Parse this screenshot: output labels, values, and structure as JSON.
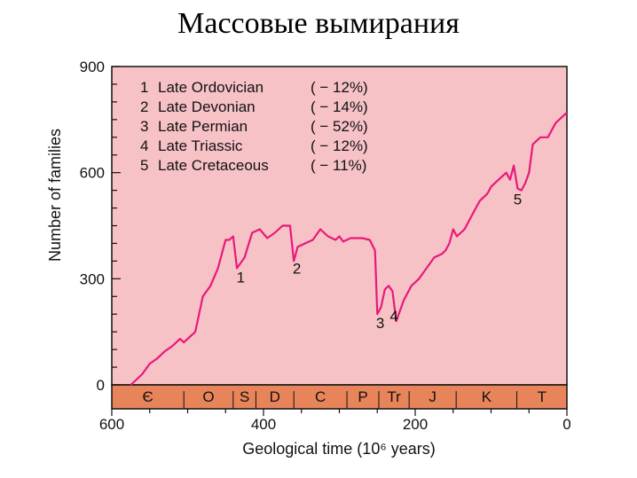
{
  "slide_title": "Массовые вымирания",
  "colors": {
    "plot_bg": "#f7c2c6",
    "period_bg": "#e8845a",
    "line": "#e8197a",
    "axis": "#111111"
  },
  "chart_data": {
    "type": "line",
    "title": "",
    "xlabel": "Geological time (10⁶ years)",
    "ylabel": "Number of families",
    "xlim": [
      600,
      0
    ],
    "ylim": [
      0,
      900
    ],
    "x_ticks": [
      "600",
      "400",
      "200",
      "0"
    ],
    "y_ticks": [
      "0",
      "300",
      "600",
      "900"
    ],
    "legend": [
      {
        "num": "1",
        "name": "Late Ordovician",
        "pct": "( − 12%)"
      },
      {
        "num": "2",
        "name": "Late Devonian",
        "pct": "( − 14%)"
      },
      {
        "num": "3",
        "name": "Late Permian",
        "pct": "( − 52%)"
      },
      {
        "num": "4",
        "name": "Late Triassic",
        "pct": "( − 12%)"
      },
      {
        "num": "5",
        "name": "Late Cretaceous",
        "pct": "( − 11%)"
      }
    ],
    "periods": [
      {
        "label": "Є",
        "start": 600,
        "end": 505
      },
      {
        "label": "O",
        "start": 505,
        "end": 440
      },
      {
        "label": "S",
        "start": 440,
        "end": 410
      },
      {
        "label": "D",
        "start": 410,
        "end": 360
      },
      {
        "label": "C",
        "start": 360,
        "end": 290
      },
      {
        "label": "P",
        "start": 290,
        "end": 248
      },
      {
        "label": "Tr",
        "start": 248,
        "end": 208
      },
      {
        "label": "J",
        "start": 208,
        "end": 146
      },
      {
        "label": "K",
        "start": 146,
        "end": 66
      },
      {
        "label": "T",
        "start": 66,
        "end": 0
      }
    ],
    "series": [
      {
        "points": [
          [
            575,
            0
          ],
          [
            570,
            10
          ],
          [
            560,
            30
          ],
          [
            550,
            60
          ],
          [
            540,
            75
          ],
          [
            530,
            95
          ],
          [
            520,
            110
          ],
          [
            510,
            130
          ],
          [
            505,
            120
          ],
          [
            500,
            130
          ],
          [
            490,
            150
          ],
          [
            480,
            250
          ],
          [
            470,
            280
          ],
          [
            460,
            330
          ],
          [
            455,
            370
          ],
          [
            450,
            410
          ],
          [
            445,
            410
          ],
          [
            440,
            420
          ],
          [
            435,
            330
          ],
          [
            425,
            360
          ],
          [
            415,
            430
          ],
          [
            405,
            440
          ],
          [
            395,
            415
          ],
          [
            385,
            430
          ],
          [
            375,
            450
          ],
          [
            365,
            450
          ],
          [
            360,
            350
          ],
          [
            355,
            390
          ],
          [
            345,
            400
          ],
          [
            335,
            410
          ],
          [
            325,
            440
          ],
          [
            315,
            420
          ],
          [
            305,
            410
          ],
          [
            300,
            420
          ],
          [
            295,
            405
          ],
          [
            285,
            415
          ],
          [
            270,
            415
          ],
          [
            260,
            410
          ],
          [
            253,
            380
          ],
          [
            250,
            200
          ],
          [
            245,
            220
          ],
          [
            240,
            270
          ],
          [
            235,
            280
          ],
          [
            230,
            265
          ],
          [
            225,
            180
          ],
          [
            220,
            210
          ],
          [
            215,
            240
          ],
          [
            205,
            280
          ],
          [
            195,
            300
          ],
          [
            185,
            330
          ],
          [
            175,
            360
          ],
          [
            165,
            370
          ],
          [
            160,
            380
          ],
          [
            155,
            400
          ],
          [
            150,
            440
          ],
          [
            145,
            420
          ],
          [
            135,
            440
          ],
          [
            125,
            480
          ],
          [
            115,
            520
          ],
          [
            105,
            540
          ],
          [
            100,
            560
          ],
          [
            90,
            580
          ],
          [
            80,
            600
          ],
          [
            75,
            580
          ],
          [
            70,
            620
          ],
          [
            65,
            555
          ],
          [
            60,
            550
          ],
          [
            55,
            570
          ],
          [
            50,
            600
          ],
          [
            45,
            680
          ],
          [
            35,
            700
          ],
          [
            25,
            700
          ],
          [
            15,
            740
          ],
          [
            5,
            760
          ],
          [
            0,
            770
          ]
        ]
      }
    ],
    "annotations": [
      {
        "text": "1",
        "x": 430,
        "y": 290
      },
      {
        "text": "2",
        "x": 356,
        "y": 315
      },
      {
        "text": "3",
        "x": 246,
        "y": 160
      },
      {
        "text": "4",
        "x": 228,
        "y": 180
      },
      {
        "text": "5",
        "x": 65,
        "y": 510
      }
    ]
  }
}
